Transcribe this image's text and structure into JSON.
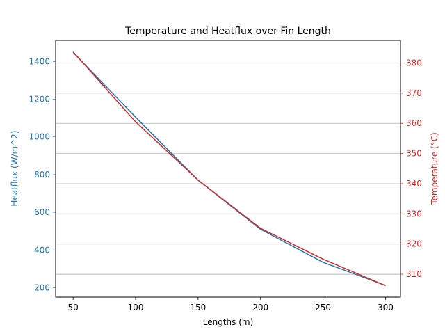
{
  "chart_data": {
    "type": "line",
    "title": "Temperature and Heatflux over Fin Length",
    "xlabel": "Lengths (m)",
    "y_left_label": "Heatflux (W/m^2)",
    "y_right_label": "Temperature (°C)",
    "x": [
      50,
      100,
      150,
      200,
      250,
      300
    ],
    "xlim": [
      36,
      312
    ],
    "x_ticks": [
      50,
      100,
      150,
      200,
      250,
      300
    ],
    "y_left_lim": [
      150,
      1512
    ],
    "y_left_ticks": [
      200,
      400,
      600,
      800,
      1000,
      1200,
      1400
    ],
    "y_right_lim": [
      302.4,
      387.5
    ],
    "y_right_ticks": [
      310,
      320,
      330,
      340,
      350,
      360,
      370,
      380
    ],
    "grid": "horizontal lines at right-axis ticks",
    "series": [
      {
        "axis": "left",
        "color": "#1f77b4",
        "values": [
          1448,
          1105,
          770,
          510,
          335,
          212
        ]
      },
      {
        "axis": "right",
        "color": "#d62728",
        "values": [
          383.7,
          360.5,
          341.2,
          325.2,
          315.0,
          306.2
        ]
      }
    ]
  }
}
